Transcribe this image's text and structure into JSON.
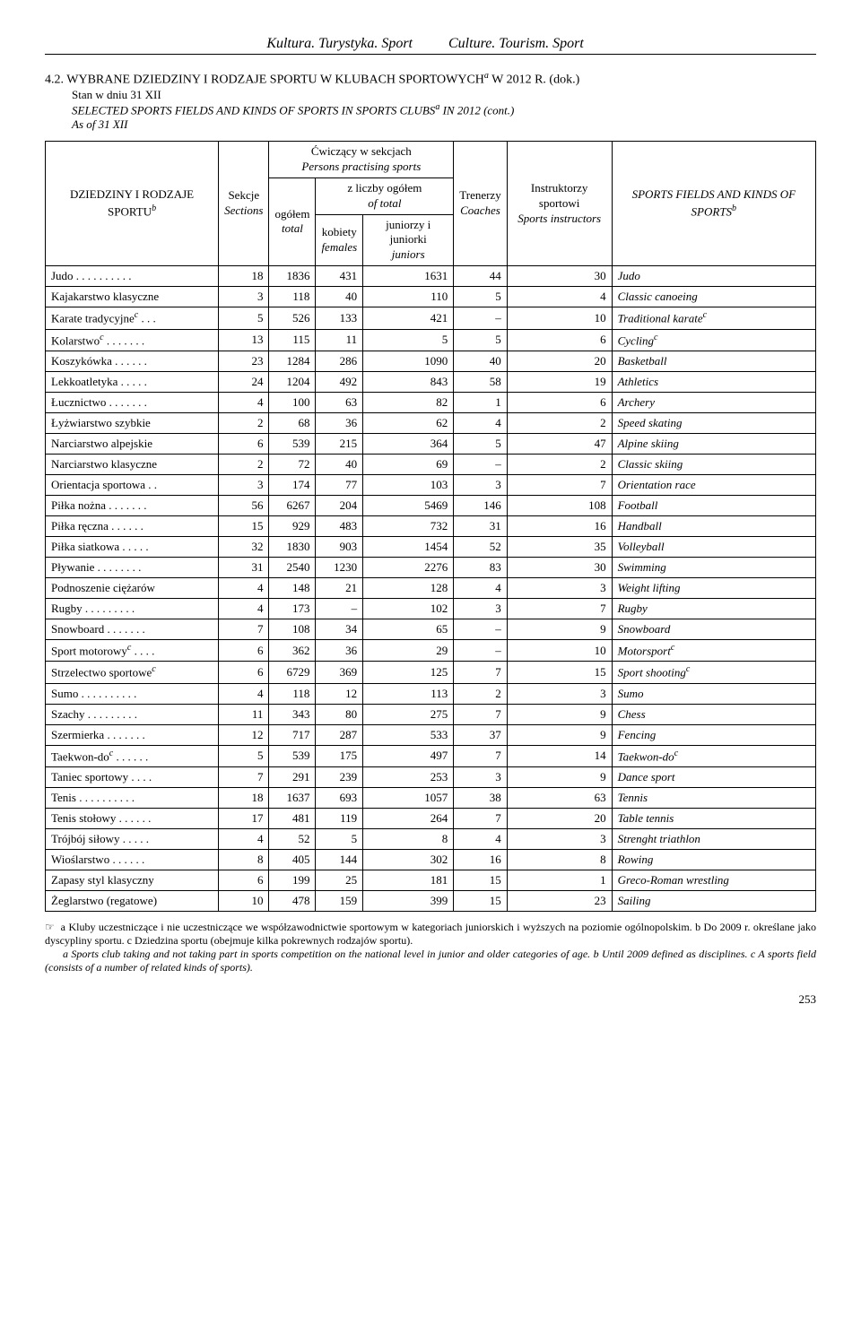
{
  "header": {
    "left": "Kultura. Turystyka. Sport",
    "right": "Culture. Tourism. Sport"
  },
  "title": {
    "num": "4.2.",
    "main_pl": "WYBRANE DZIEDZINY I RODZAJE SPORTU W KLUBACH SPORTOWYCH",
    "main_pl_sup": "a",
    "main_pl_tail": " W 2012 R. (dok.)",
    "sub_pl": "Stan w dniu 31 XII",
    "main_en": "SELECTED SPORTS FIELDS AND KINDS OF SPORTS IN SPORTS CLUBS",
    "main_en_sup": "a",
    "main_en_tail": " IN 2012 (cont.)",
    "sub_en": "As of 31 XII"
  },
  "columns": {
    "c1_pl": "DZIEDZINY I RODZAJE SPORTU",
    "c1_sup": "b",
    "c2_pl": "Sekcje",
    "c2_en": "Sections",
    "c3_top_pl": "Ćwiczący w sekcjach",
    "c3_top_en": "Persons practising sports",
    "c3a_pl": "ogółem",
    "c3a_en": "total",
    "c3b_top_pl": "z liczby ogółem",
    "c3b_top_en": "of total",
    "c3b1_pl": "kobiety",
    "c3b1_en": "females",
    "c3b2_pl": "juniorzy i juniorki",
    "c3b2_en": "juniors",
    "c4_pl": "Trenerzy",
    "c4_en": "Coaches",
    "c5_pl": "Instruk­torzy sportowi",
    "c5_en": "Sports in­structors",
    "c6_en": "SPORTS FIELDS AND KINDS OF SPORTS",
    "c6_sup": "b"
  },
  "rows": [
    {
      "pl": "Judo . . . . . . . . . .",
      "sek": "18",
      "og": "1836",
      "kob": "431",
      "jun": "1631",
      "tr": "44",
      "ins": "30",
      "en": "Judo"
    },
    {
      "pl": "Kajakarstwo klasyczne",
      "sek": "3",
      "og": "118",
      "kob": "40",
      "jun": "110",
      "tr": "5",
      "ins": "4",
      "en": "Classic canoeing"
    },
    {
      "pl": "Karate tradycyjne",
      "pl_sup": "c",
      "pl_tail": " . . .",
      "sek": "5",
      "og": "526",
      "kob": "133",
      "jun": "421",
      "tr": "–",
      "ins": "10",
      "en": "Traditional karate",
      "en_sup": "c"
    },
    {
      "pl": "Kolarstwo",
      "pl_sup": "c",
      "pl_tail": " . . . . . . .",
      "sek": "13",
      "og": "115",
      "kob": "11",
      "jun": "5",
      "tr": "5",
      "ins": "6",
      "en": "Cycling",
      "en_sup": "c"
    },
    {
      "pl": "Koszykówka . . . . . .",
      "sek": "23",
      "og": "1284",
      "kob": "286",
      "jun": "1090",
      "tr": "40",
      "ins": "20",
      "en": "Basketball"
    },
    {
      "pl": "Lekkoatletyka . . . . .",
      "sek": "24",
      "og": "1204",
      "kob": "492",
      "jun": "843",
      "tr": "58",
      "ins": "19",
      "en": "Athletics"
    },
    {
      "pl": "Łucznictwo . . . . . . .",
      "sek": "4",
      "og": "100",
      "kob": "63",
      "jun": "82",
      "tr": "1",
      "ins": "6",
      "en": "Archery"
    },
    {
      "pl": "Łyżwiarstwo szybkie",
      "sek": "2",
      "og": "68",
      "kob": "36",
      "jun": "62",
      "tr": "4",
      "ins": "2",
      "en": "Speed skating"
    },
    {
      "pl": "Narciarstwo alpejskie",
      "sek": "6",
      "og": "539",
      "kob": "215",
      "jun": "364",
      "tr": "5",
      "ins": "47",
      "en": "Alpine skiing"
    },
    {
      "pl": "Narciarstwo klasyczne",
      "sek": "2",
      "og": "72",
      "kob": "40",
      "jun": "69",
      "tr": "–",
      "ins": "2",
      "en": "Classic skiing"
    },
    {
      "pl": "Orientacja sportowa . .",
      "sek": "3",
      "og": "174",
      "kob": "77",
      "jun": "103",
      "tr": "3",
      "ins": "7",
      "en": "Orientation race"
    },
    {
      "pl": "Piłka nożna . . . . . . .",
      "sek": "56",
      "og": "6267",
      "kob": "204",
      "jun": "5469",
      "tr": "146",
      "ins": "108",
      "en": "Football"
    },
    {
      "pl": "Piłka ręczna  . . . . . .",
      "sek": "15",
      "og": "929",
      "kob": "483",
      "jun": "732",
      "tr": "31",
      "ins": "16",
      "en": "Handball"
    },
    {
      "pl": "Piłka siatkowa . . . . .",
      "sek": "32",
      "og": "1830",
      "kob": "903",
      "jun": "1454",
      "tr": "52",
      "ins": "35",
      "en": "Volleyball"
    },
    {
      "pl": "Pływanie . . . . . . . .",
      "sek": "31",
      "og": "2540",
      "kob": "1230",
      "jun": "2276",
      "tr": "83",
      "ins": "30",
      "en": "Swimming"
    },
    {
      "pl": "Podnoszenie ciężarów",
      "sek": "4",
      "og": "148",
      "kob": "21",
      "jun": "128",
      "tr": "4",
      "ins": "3",
      "en": "Weight lifting"
    },
    {
      "pl": "Rugby  . . . . . . . . .",
      "sek": "4",
      "og": "173",
      "kob": "–",
      "jun": "102",
      "tr": "3",
      "ins": "7",
      "en": "Rugby"
    },
    {
      "pl": "Snowboard . . . . . . .",
      "sek": "7",
      "og": "108",
      "kob": "34",
      "jun": "65",
      "tr": "–",
      "ins": "9",
      "en": "Snowboard"
    },
    {
      "pl": "Sport motorowy",
      "pl_sup": "c",
      "pl_tail": " . . . .",
      "sek": "6",
      "og": "362",
      "kob": "36",
      "jun": "29",
      "tr": "–",
      "ins": "10",
      "en": "Motorsport",
      "en_sup": "c"
    },
    {
      "pl": "Strzelectwo sportowe",
      "pl_sup": "c",
      "sek": "6",
      "og": "6729",
      "kob": "369",
      "jun": "125",
      "tr": "7",
      "ins": "15",
      "en": "Sport shooting",
      "en_sup": "c"
    },
    {
      "pl": "Sumo . . . . . . . . . .",
      "sek": "4",
      "og": "118",
      "kob": "12",
      "jun": "113",
      "tr": "2",
      "ins": "3",
      "en": "Sumo"
    },
    {
      "pl": "Szachy . . . . . . . . .",
      "sek": "11",
      "og": "343",
      "kob": "80",
      "jun": "275",
      "tr": "7",
      "ins": "9",
      "en": "Chess"
    },
    {
      "pl": "Szermierka . . . . . . .",
      "sek": "12",
      "og": "717",
      "kob": "287",
      "jun": "533",
      "tr": "37",
      "ins": "9",
      "en": "Fencing"
    },
    {
      "pl": "Taekwon-do",
      "pl_sup": "c",
      "pl_tail": " . . . . . .",
      "sek": "5",
      "og": "539",
      "kob": "175",
      "jun": "497",
      "tr": "7",
      "ins": "14",
      "en": "Taekwon-do",
      "en_sup": "c"
    },
    {
      "pl": "Taniec sportowy . . . .",
      "sek": "7",
      "og": "291",
      "kob": "239",
      "jun": "253",
      "tr": "3",
      "ins": "9",
      "en": "Dance sport"
    },
    {
      "pl": "Tenis . . . . . . . . . .",
      "sek": "18",
      "og": "1637",
      "kob": "693",
      "jun": "1057",
      "tr": "38",
      "ins": "63",
      "en": "Tennis"
    },
    {
      "pl": "Tenis stołowy . . . . . .",
      "sek": "17",
      "og": "481",
      "kob": "119",
      "jun": "264",
      "tr": "7",
      "ins": "20",
      "en": "Table tennis"
    },
    {
      "pl": "Trójbój siłowy . . . . .",
      "sek": "4",
      "og": "52",
      "kob": "5",
      "jun": "8",
      "tr": "4",
      "ins": "3",
      "en": "Strenght triathlon"
    },
    {
      "pl": "Wioślarstwo . . . . . .",
      "sek": "8",
      "og": "405",
      "kob": "144",
      "jun": "302",
      "tr": "16",
      "ins": "8",
      "en": "Rowing"
    },
    {
      "pl": "Zapasy styl klasyczny",
      "sek": "6",
      "og": "199",
      "kob": "25",
      "jun": "181",
      "tr": "15",
      "ins": "1",
      "en": "Greco-Roman wrestling"
    },
    {
      "pl": "Żeglarstwo (regatowe)",
      "sek": "10",
      "og": "478",
      "kob": "159",
      "jun": "399",
      "tr": "15",
      "ins": "23",
      "en": "Sailing"
    }
  ],
  "footnote": {
    "pl": "a Kluby uczestniczące i nie uczestniczące we współzawodnictwie sportowym w kategoriach juniorskich i wyższych na poziomie ogólnopolskim. b Do 2009 r. określane jako dyscypliny sportu. c Dziedzina sportu (obejmuje kilka pokrewnych rodzajów sportu).",
    "en": "a Sports club taking and not taking part in sports competition on the national level in junior and older categories of age. b Until 2009 defined as disciplines. c A sports field (consists of a number of related kinds of sports).",
    "hand": "☞"
  },
  "page": "253"
}
